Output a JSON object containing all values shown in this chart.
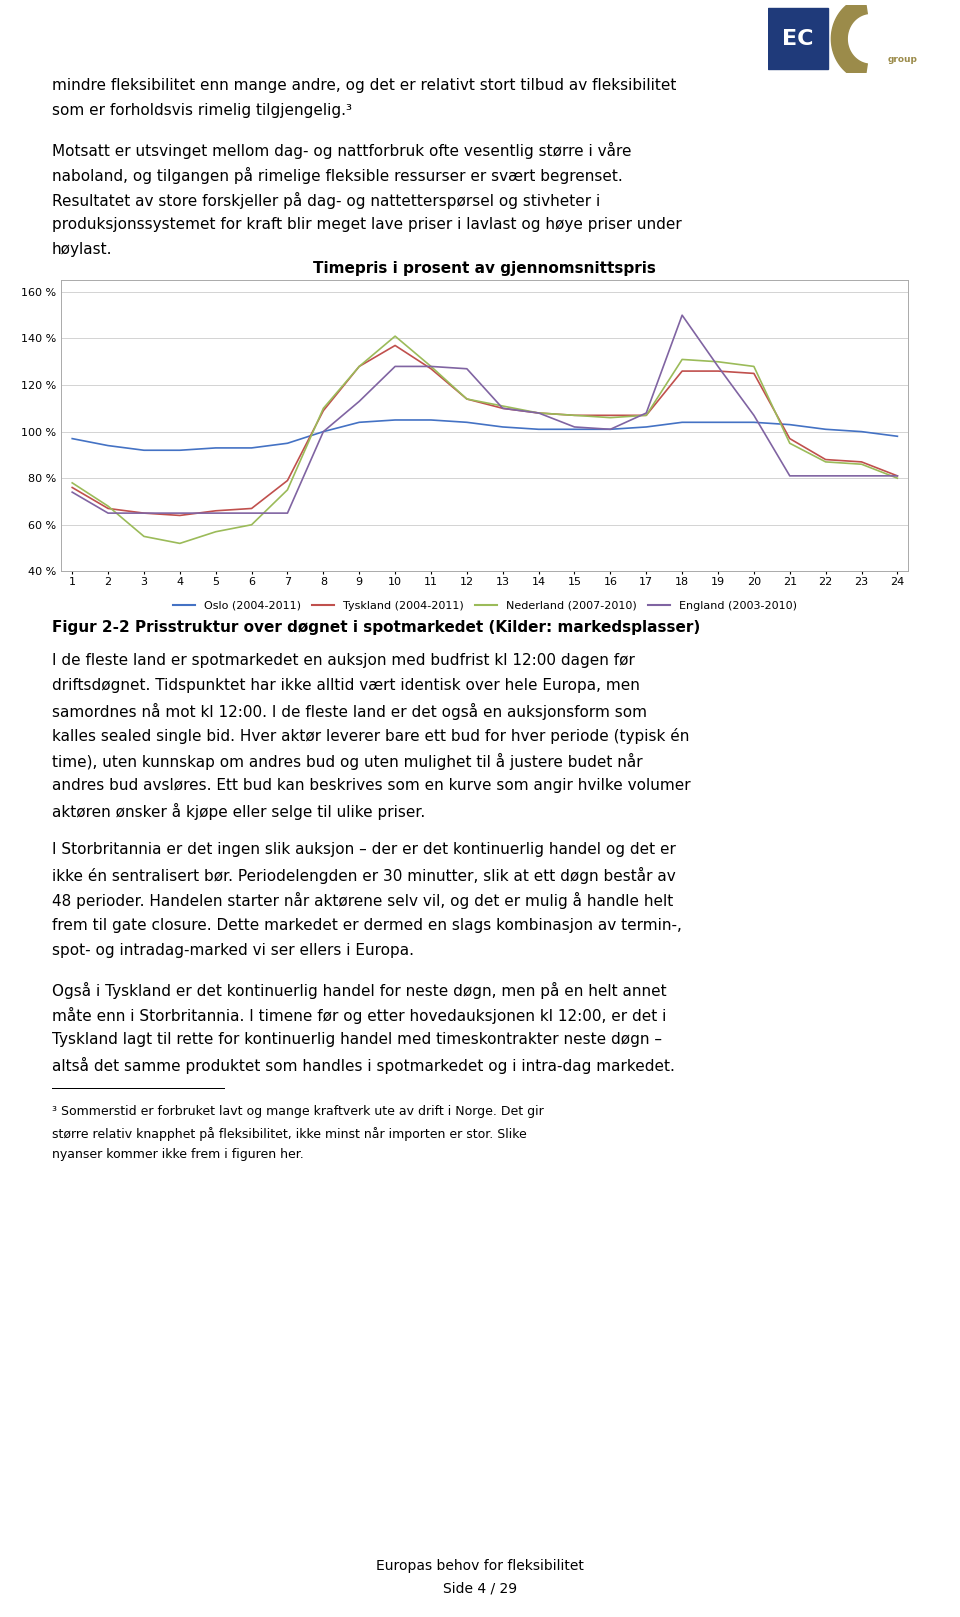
{
  "title": "Timepris i prosent av gjennomsnittspris",
  "ylim": [
    40,
    165
  ],
  "yticks": [
    40,
    60,
    80,
    100,
    120,
    140,
    160
  ],
  "ytick_labels": [
    "40 %",
    "60 %",
    "80 %",
    "100 %",
    "120 %",
    "140 %",
    "160 %"
  ],
  "xlim": [
    1,
    24
  ],
  "xticks": [
    1,
    2,
    3,
    4,
    5,
    6,
    7,
    8,
    9,
    10,
    11,
    12,
    13,
    14,
    15,
    16,
    17,
    18,
    19,
    20,
    21,
    22,
    23,
    24
  ],
  "series": {
    "Oslo (2004-2011)": {
      "color": "#4472C4",
      "values": [
        97,
        94,
        92,
        92,
        93,
        93,
        95,
        100,
        104,
        105,
        105,
        104,
        102,
        101,
        101,
        101,
        102,
        104,
        104,
        104,
        103,
        101,
        100,
        98
      ]
    },
    "Tyskland (2004-2011)": {
      "color": "#C0504D",
      "values": [
        76,
        67,
        65,
        64,
        66,
        67,
        79,
        109,
        128,
        137,
        127,
        114,
        110,
        108,
        107,
        107,
        107,
        126,
        126,
        125,
        97,
        88,
        87,
        81
      ]
    },
    "Nederland (2007-2010)": {
      "color": "#9BBB59",
      "values": [
        78,
        68,
        55,
        52,
        57,
        60,
        75,
        110,
        128,
        141,
        128,
        114,
        111,
        108,
        107,
        106,
        107,
        131,
        130,
        128,
        95,
        87,
        86,
        80
      ]
    },
    "England (2003-2010)": {
      "color": "#8064A2",
      "values": [
        74,
        65,
        65,
        65,
        65,
        65,
        65,
        100,
        113,
        128,
        128,
        127,
        110,
        108,
        102,
        101,
        108,
        150,
        128,
        107,
        81,
        81,
        81,
        81
      ]
    }
  },
  "legend_order": [
    "Oslo (2004-2011)",
    "Tyskland (2004-2011)",
    "Nederland (2007-2010)",
    "England (2003-2010)"
  ],
  "top_texts": [
    "mindre fleksibilitet enn mange andre, og det er relativt stort tilbud av fleksibilitet",
    "som er forholdsvis rimelig tilgjengelig.³",
    "",
    "Motsatt er utsvinget mellom dag- og nattforbruk ofte vesentlig større i våre",
    "naboland, og tilgangen på rimelige fleksible ressurser er svært begrenset.",
    "Resultatet av store forskjeller på dag- og nattetterspørsel og stivheter i",
    "produksjonssystemet for kraft blir meget lave priser i lavlast og høye priser under",
    "høylast."
  ],
  "caption": "Figur 2-2 Prisstruktur over døgnet i spotmarkedet (Kilder: markedsplasser)",
  "bottom_texts": [
    "I de fleste land er spotmarkedet en auksjon med budfrist kl 12:00 dagen før",
    "driftsdøgnet. Tidspunktet har ikke alltid vært identisk over hele Europa, men",
    "samordnes nå mot kl 12:00. I de fleste land er det også en auksjonsform som",
    "kalles sealed single bid. Hver aktør leverer bare ett bud for hver periode (typisk én",
    "time), uten kunnskap om andres bud og uten mulighet til å justere budet når",
    "andres bud avsløres. Ett bud kan beskrives som en kurve som angir hvilke volumer",
    "aktøren ønsker å kjøpe eller selge til ulike priser.",
    "",
    "I Storbritannia er det ingen slik auksjon – der er det kontinuerlig handel og det er",
    "ikke én sentralisert bør. Periodelengden er 30 minutter, slik at ett døgn består av",
    "48 perioder. Handelen starter når aktørene selv vil, og det er mulig å handle helt",
    "frem til gate closure. Dette markedet er dermed en slags kombinasjon av termin-,",
    "spot- og intradag-marked vi ser ellers i Europa.",
    "",
    "Også i Tyskland er det kontinuerlig handel for neste døgn, men på en helt annet",
    "måte enn i Storbritannia. I timene før og etter hovedauksjonen kl 12:00, er det i",
    "Tyskland lagt til rette for kontinuerlig handel med timeskontrakter neste døgn –",
    "altså det samme produktet som handles i spotmarkedet og i intra-dag markedet."
  ],
  "footnote_line": "³ Sommerstid er forbruket lavt og mange kraftverk ute av drift i Norge. Det gir",
  "footnote_line2": "større relativ knapphet på fleksibilitet, ikke minst når importen er stor. Slike",
  "footnote_line3": "nyanser kommer ikke frem i figuren her.",
  "footer_center": "Europas behov for fleksibilitet",
  "footer_page": "Side 4 / 29",
  "background_color": "#FFFFFF",
  "body_font_size": 11,
  "chart_title_fontsize": 11,
  "legend_fontsize": 8,
  "tick_fontsize": 8,
  "grid_color": "#CCCCCC",
  "chart_border_color": "#AAAAAA",
  "logo_ec_color": "#1F3A7A",
  "logo_group_color": "#9B8B4A"
}
